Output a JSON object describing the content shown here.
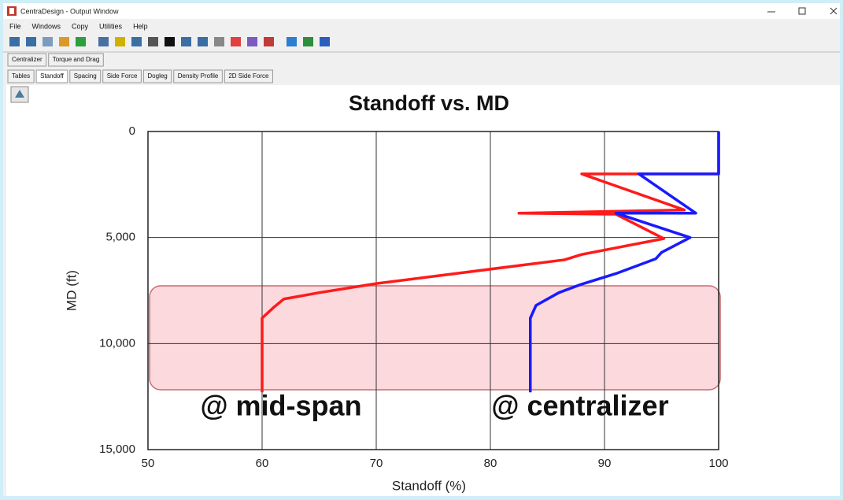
{
  "window": {
    "title": "CentraDesign - Output Window",
    "menu": [
      "File",
      "Windows",
      "Copy",
      "Utilities",
      "Help"
    ],
    "tabs": [
      "Centralizer",
      "Torque and Drag"
    ],
    "subtabs": [
      "Tables",
      "Standoff",
      "Spacing",
      "Side Force",
      "Dogleg",
      "Density Profile",
      "2D Side Force"
    ],
    "selected_subtab": "Standoff"
  },
  "chart_data": {
    "type": "line",
    "title": "Standoff vs. MD",
    "xlabel": "Standoff (%)",
    "ylabel": "MD (ft)",
    "xlim": [
      50,
      100
    ],
    "xticks": [
      50,
      60,
      70,
      80,
      90,
      100
    ],
    "ylim": [
      0,
      15000
    ],
    "yreverse": true,
    "yticks": [
      0,
      {
        "value": 5000,
        "label": "5,000"
      },
      {
        "value": 10000,
        "label": "10,000"
      },
      {
        "value": 15000,
        "label": "15,000"
      }
    ],
    "grid": true,
    "series": [
      {
        "name": "@ mid-span",
        "color": "#ff1a1a",
        "md": [
          0,
          2000,
          2000,
          3700,
          3850,
          3900,
          5050,
          5800,
          6050,
          7170,
          7600,
          7900,
          8300,
          8800,
          12300
        ],
        "values": [
          100,
          100,
          88,
          97,
          82.5,
          91,
          95.2,
          88,
          86.5,
          70,
          65,
          61.9,
          61,
          60,
          60
        ]
      },
      {
        "name": "@ centralizer",
        "color": "#1a1aff",
        "md": [
          0,
          2000,
          2000,
          3850,
          3850,
          5000,
          5700,
          6000,
          6700,
          7200,
          7600,
          8200,
          8800,
          12300
        ],
        "values": [
          100,
          100,
          93,
          98,
          91,
          97.5,
          95,
          94.5,
          91,
          88,
          86,
          84,
          83.5,
          83.5
        ]
      }
    ]
  }
}
